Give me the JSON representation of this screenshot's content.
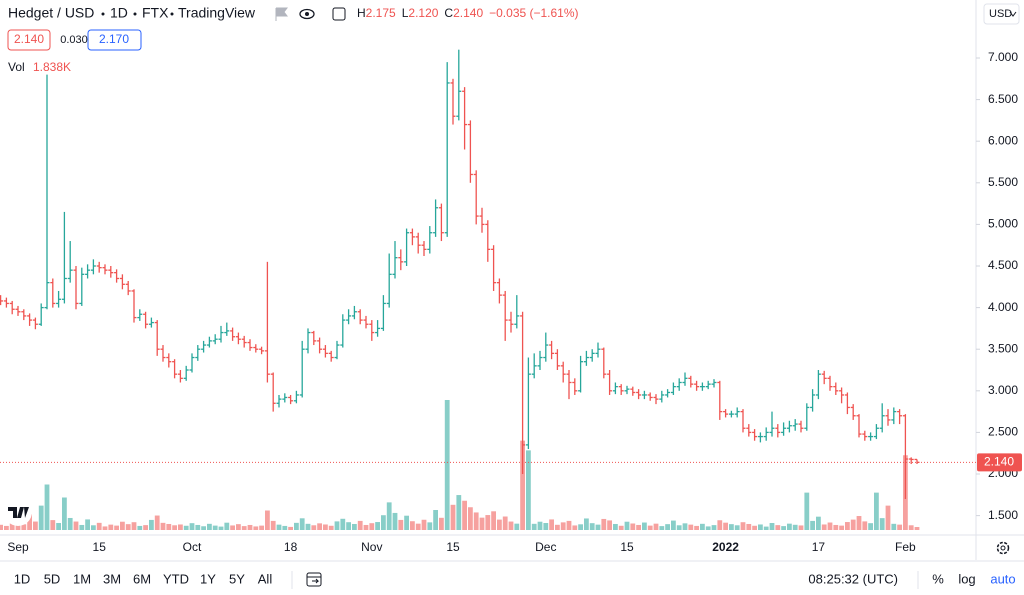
{
  "chart_data": {
    "type": "ohlc",
    "symbol": "Hedget / USD",
    "interval": "1D",
    "exchange": "FTX",
    "source": "TradingView",
    "ohlc_header": [
      {
        "key": "H",
        "value": "2.175"
      },
      {
        "key": "L",
        "value": "2.120"
      },
      {
        "key": "C",
        "value": "2.140"
      }
    ],
    "change": "−0.035 (−1.61%)",
    "quote": {
      "bid": "2.140",
      "spread": "0.030",
      "ask": "2.170"
    },
    "volume_label": "Vol",
    "last_volume_label": "1.838K",
    "last_price_label": "2.140",
    "up_color": "#26a69a",
    "down_color": "#ef5350",
    "categories": [
      null,
      null,
      null,
      "Sep",
      null,
      null,
      null,
      null,
      null,
      null,
      null,
      null,
      null,
      null,
      null,
      null,
      null,
      "15",
      null,
      null,
      null,
      null,
      null,
      null,
      null,
      null,
      null,
      null,
      null,
      null,
      null,
      null,
      null,
      "Oct",
      null,
      null,
      null,
      null,
      null,
      null,
      null,
      null,
      null,
      null,
      null,
      null,
      null,
      null,
      null,
      null,
      "18",
      null,
      null,
      null,
      null,
      null,
      null,
      null,
      null,
      null,
      null,
      null,
      null,
      null,
      "Nov",
      null,
      null,
      null,
      null,
      null,
      null,
      null,
      null,
      null,
      null,
      null,
      null,
      null,
      "15",
      null,
      null,
      null,
      null,
      null,
      null,
      null,
      null,
      null,
      null,
      null,
      null,
      null,
      null,
      null,
      "Dec",
      null,
      null,
      null,
      null,
      null,
      null,
      null,
      null,
      null,
      null,
      null,
      null,
      null,
      "15",
      null,
      null,
      null,
      null,
      null,
      null,
      null,
      null,
      null,
      null,
      null,
      null,
      null,
      null,
      null,
      null,
      "2022",
      null,
      null,
      null,
      null,
      null,
      null,
      null,
      null,
      null,
      null,
      null,
      null,
      null,
      null,
      null,
      "17",
      null,
      null,
      null,
      null,
      null,
      null,
      null,
      null,
      null,
      null,
      null,
      null,
      null,
      null,
      "Feb",
      null,
      null
    ],
    "open": [
      4.1,
      4.08,
      4.05,
      3.98,
      3.95,
      3.9,
      3.85,
      3.8,
      4.0,
      4.3,
      4.05,
      4.1,
      4.35,
      4.45,
      4.05,
      4.4,
      4.45,
      4.5,
      4.48,
      4.45,
      4.42,
      4.35,
      4.28,
      4.2,
      3.88,
      3.92,
      3.8,
      3.82,
      3.5,
      3.4,
      3.35,
      3.2,
      3.15,
      3.25,
      3.4,
      3.5,
      3.55,
      3.6,
      3.62,
      3.7,
      3.72,
      3.65,
      3.62,
      3.58,
      3.52,
      3.5,
      3.48,
      3.2,
      2.85,
      2.9,
      2.92,
      2.88,
      2.95,
      3.5,
      3.7,
      3.6,
      3.5,
      3.45,
      3.4,
      3.55,
      3.85,
      3.9,
      3.95,
      3.85,
      3.8,
      3.7,
      3.75,
      4.05,
      4.4,
      4.6,
      4.55,
      4.9,
      4.85,
      4.75,
      4.7,
      4.9,
      5.2,
      4.9,
      6.7,
      6.3,
      6.6,
      6.2,
      5.6,
      5.1,
      5.0,
      4.7,
      4.3,
      4.15,
      3.85,
      3.8,
      3.9,
      2.35,
      3.2,
      3.3,
      3.4,
      3.55,
      3.45,
      3.3,
      3.2,
      3.1,
      3.0,
      3.35,
      3.4,
      3.45,
      3.5,
      3.2,
      3.0,
      3.05,
      3.0,
      3.02,
      2.98,
      2.95,
      2.95,
      2.92,
      2.9,
      2.95,
      2.98,
      3.05,
      3.1,
      3.15,
      3.08,
      3.05,
      3.05,
      3.08,
      3.1,
      2.75,
      2.72,
      2.72,
      2.75,
      2.55,
      2.5,
      2.45,
      2.45,
      2.5,
      2.55,
      2.5,
      2.55,
      2.58,
      2.6,
      2.55,
      2.8,
      2.95,
      3.2,
      3.15,
      3.05,
      3.0,
      2.95,
      2.8,
      2.7,
      2.48,
      2.45,
      2.45,
      2.55,
      2.7,
      2.65,
      2.75,
      2.7,
      2.18,
      2.175
    ],
    "high": [
      4.15,
      4.12,
      4.08,
      4.02,
      3.98,
      3.93,
      3.88,
      4.05,
      6.8,
      4.35,
      4.2,
      5.15,
      4.8,
      4.5,
      4.48,
      4.52,
      4.58,
      4.55,
      4.52,
      4.5,
      4.46,
      4.4,
      4.32,
      4.22,
      3.98,
      3.95,
      3.88,
      3.85,
      3.55,
      3.45,
      3.38,
      3.25,
      3.3,
      3.45,
      3.55,
      3.6,
      3.65,
      3.68,
      3.78,
      3.82,
      3.76,
      3.7,
      3.66,
      3.62,
      3.56,
      3.53,
      4.55,
      3.22,
      2.95,
      2.97,
      2.95,
      3.0,
      3.6,
      3.75,
      3.72,
      3.64,
      3.55,
      3.48,
      3.6,
      3.92,
      3.98,
      4.02,
      3.98,
      3.9,
      3.85,
      3.85,
      4.15,
      4.65,
      4.8,
      4.7,
      4.95,
      4.95,
      4.9,
      4.8,
      4.98,
      5.3,
      5.25,
      6.95,
      6.75,
      7.1,
      6.65,
      6.25,
      5.65,
      5.2,
      5.05,
      4.75,
      4.35,
      4.2,
      3.95,
      4.15,
      3.95,
      3.4,
      3.45,
      3.48,
      3.7,
      3.6,
      3.5,
      3.35,
      3.25,
      3.15,
      3.42,
      3.48,
      3.5,
      3.58,
      3.52,
      3.25,
      3.1,
      3.08,
      3.06,
      3.05,
      3.02,
      3.0,
      2.98,
      2.96,
      3.0,
      3.02,
      3.1,
      3.15,
      3.22,
      3.18,
      3.12,
      3.1,
      3.12,
      3.14,
      3.12,
      2.78,
      2.76,
      2.8,
      2.78,
      2.6,
      2.54,
      2.5,
      2.56,
      2.75,
      2.6,
      2.62,
      2.64,
      2.66,
      2.64,
      2.85,
      3.02,
      3.25,
      3.24,
      3.18,
      3.1,
      3.04,
      2.98,
      2.84,
      2.72,
      2.52,
      2.5,
      2.6,
      2.85,
      2.78,
      2.8,
      2.78,
      2.72,
      2.2,
      2.175
    ],
    "low": [
      4.03,
      4.0,
      3.92,
      3.9,
      3.85,
      3.78,
      3.74,
      3.78,
      3.98,
      4.0,
      4.0,
      4.05,
      4.3,
      3.98,
      4.02,
      4.35,
      4.4,
      4.42,
      4.4,
      4.36,
      4.3,
      4.22,
      4.15,
      3.82,
      3.84,
      3.75,
      3.76,
      3.42,
      3.35,
      3.28,
      3.15,
      3.1,
      3.12,
      3.22,
      3.36,
      3.46,
      3.52,
      3.56,
      3.58,
      3.66,
      3.6,
      3.56,
      3.52,
      3.48,
      3.46,
      3.44,
      3.1,
      2.75,
      2.8,
      2.86,
      2.84,
      2.85,
      2.92,
      3.45,
      3.55,
      3.45,
      3.4,
      3.35,
      3.38,
      3.52,
      3.8,
      3.86,
      3.8,
      3.75,
      3.6,
      3.65,
      3.72,
      4.0,
      4.35,
      4.45,
      4.5,
      4.75,
      4.65,
      4.62,
      4.65,
      4.85,
      4.8,
      4.85,
      6.2,
      6.25,
      5.9,
      5.5,
      5.0,
      4.9,
      4.55,
      4.2,
      4.05,
      3.6,
      3.7,
      3.75,
      2.0,
      2.3,
      3.15,
      3.25,
      3.35,
      3.38,
      3.25,
      3.1,
      2.9,
      2.95,
      2.98,
      3.3,
      3.35,
      3.4,
      3.15,
      2.95,
      2.96,
      2.95,
      2.96,
      2.94,
      2.9,
      2.9,
      2.88,
      2.84,
      2.86,
      2.92,
      2.95,
      3.0,
      3.06,
      3.04,
      3.0,
      3.0,
      3.02,
      3.04,
      2.65,
      2.68,
      2.68,
      2.68,
      2.5,
      2.45,
      2.4,
      2.38,
      2.4,
      2.45,
      2.44,
      2.46,
      2.5,
      2.52,
      2.5,
      2.52,
      2.75,
      2.9,
      3.08,
      3.0,
      2.95,
      2.85,
      2.72,
      2.65,
      2.44,
      2.4,
      2.4,
      2.42,
      2.5,
      2.58,
      2.6,
      2.6,
      1.7,
      2.12,
      2.12
    ],
    "close": [
      4.08,
      4.05,
      3.98,
      3.95,
      3.9,
      3.85,
      3.8,
      4.0,
      4.3,
      4.05,
      4.1,
      4.35,
      4.45,
      4.05,
      4.4,
      4.45,
      4.5,
      4.48,
      4.45,
      4.42,
      4.35,
      4.28,
      4.2,
      3.88,
      3.92,
      3.8,
      3.82,
      3.5,
      3.4,
      3.35,
      3.2,
      3.15,
      3.25,
      3.4,
      3.5,
      3.55,
      3.6,
      3.62,
      3.7,
      3.72,
      3.65,
      3.62,
      3.58,
      3.52,
      3.5,
      3.48,
      3.2,
      2.85,
      2.9,
      2.92,
      2.88,
      2.95,
      3.5,
      3.7,
      3.6,
      3.5,
      3.45,
      3.4,
      3.55,
      3.85,
      3.9,
      3.95,
      3.85,
      3.8,
      3.7,
      3.75,
      4.05,
      4.4,
      4.6,
      4.55,
      4.9,
      4.85,
      4.75,
      4.7,
      4.9,
      5.2,
      4.9,
      6.7,
      6.3,
      6.6,
      6.2,
      5.6,
      5.1,
      5.0,
      4.7,
      4.3,
      4.15,
      3.85,
      3.8,
      3.9,
      2.35,
      3.2,
      3.3,
      3.4,
      3.55,
      3.45,
      3.3,
      3.2,
      3.1,
      3.0,
      3.35,
      3.4,
      3.45,
      3.5,
      3.2,
      3.0,
      3.05,
      3.0,
      3.02,
      2.98,
      2.95,
      2.95,
      2.92,
      2.9,
      2.95,
      2.98,
      3.05,
      3.1,
      3.15,
      3.08,
      3.05,
      3.05,
      3.08,
      3.1,
      2.75,
      2.72,
      2.72,
      2.75,
      2.55,
      2.5,
      2.45,
      2.45,
      2.5,
      2.55,
      2.5,
      2.55,
      2.58,
      2.6,
      2.55,
      2.8,
      2.95,
      3.2,
      3.15,
      3.05,
      3.0,
      2.95,
      2.8,
      2.7,
      2.48,
      2.45,
      2.45,
      2.55,
      2.7,
      2.65,
      2.75,
      2.7,
      2.18,
      2.175,
      2.14
    ],
    "volume": [
      3200,
      2500,
      4100,
      2800,
      3500,
      9800,
      5200,
      15000,
      28000,
      6100,
      4300,
      20000,
      7400,
      5200,
      3100,
      6500,
      2900,
      4400,
      2200,
      3300,
      2700,
      5100,
      3600,
      4800,
      2500,
      3000,
      6200,
      8900,
      4400,
      3700,
      2900,
      3400,
      2600,
      4200,
      3100,
      2300,
      3800,
      2700,
      2100,
      4500,
      2800,
      3600,
      2400,
      3100,
      2200,
      2700,
      12000,
      5600,
      3300,
      2500,
      1900,
      4400,
      7200,
      3800,
      2900,
      4100,
      3400,
      2600,
      5300,
      6900,
      4800,
      3700,
      5600,
      3100,
      4200,
      4900,
      9100,
      17000,
      10500,
      6200,
      8800,
      5400,
      3900,
      6300,
      4700,
      12300,
      7500,
      80000,
      15500,
      21500,
      18000,
      14000,
      10800,
      7600,
      9200,
      11500,
      6400,
      8300,
      5200,
      3900,
      55000,
      49000,
      3800,
      5100,
      4300,
      6500,
      3200,
      4700,
      5600,
      2800,
      3500,
      7100,
      4200,
      3300,
      6800,
      5900,
      3700,
      2600,
      5100,
      4000,
      3100,
      4600,
      2700,
      3900,
      2400,
      3600,
      5800,
      2900,
      4100,
      3300,
      2500,
      3800,
      2200,
      3000,
      6000,
      4500,
      3600,
      2900,
      4800,
      3700,
      2600,
      3400,
      2100,
      4300,
      3000,
      2400,
      3900,
      3200,
      2800,
      23000,
      5600,
      8200,
      3400,
      4600,
      3100,
      2700,
      4900,
      6400,
      8600,
      5300,
      4200,
      23000,
      7300,
      15000,
      3800,
      3300,
      46000,
      2900,
      1838
    ],
    "ylim": [
      1.267,
      7.697
    ],
    "yticks": [
      {
        "value": 1.5,
        "label": "1.500"
      },
      {
        "value": 2,
        "label": "2.000"
      },
      {
        "value": 2.5,
        "label": "2.500"
      },
      {
        "value": 3,
        "label": "3.000"
      },
      {
        "value": 3.5,
        "label": "3.500"
      },
      {
        "value": 4,
        "label": "4.000"
      },
      {
        "value": 4.5,
        "label": "4.500"
      },
      {
        "value": 5,
        "label": "5.000"
      },
      {
        "value": 5.5,
        "label": "5.500"
      },
      {
        "value": 6,
        "label": "6.000"
      },
      {
        "value": 6.5,
        "label": "6.500"
      },
      {
        "value": 7,
        "label": "7.000"
      }
    ],
    "vlim": [
      0,
      200000
    ],
    "grid": false
  },
  "ui": {
    "currency": "USD",
    "ranges": [
      "1D",
      "5D",
      "1M",
      "3M",
      "6M",
      "YTD",
      "1Y",
      "5Y",
      "All"
    ],
    "clock": "08:25:32 (UTC)",
    "scale_buttons": [
      "%",
      "log",
      "auto"
    ]
  }
}
